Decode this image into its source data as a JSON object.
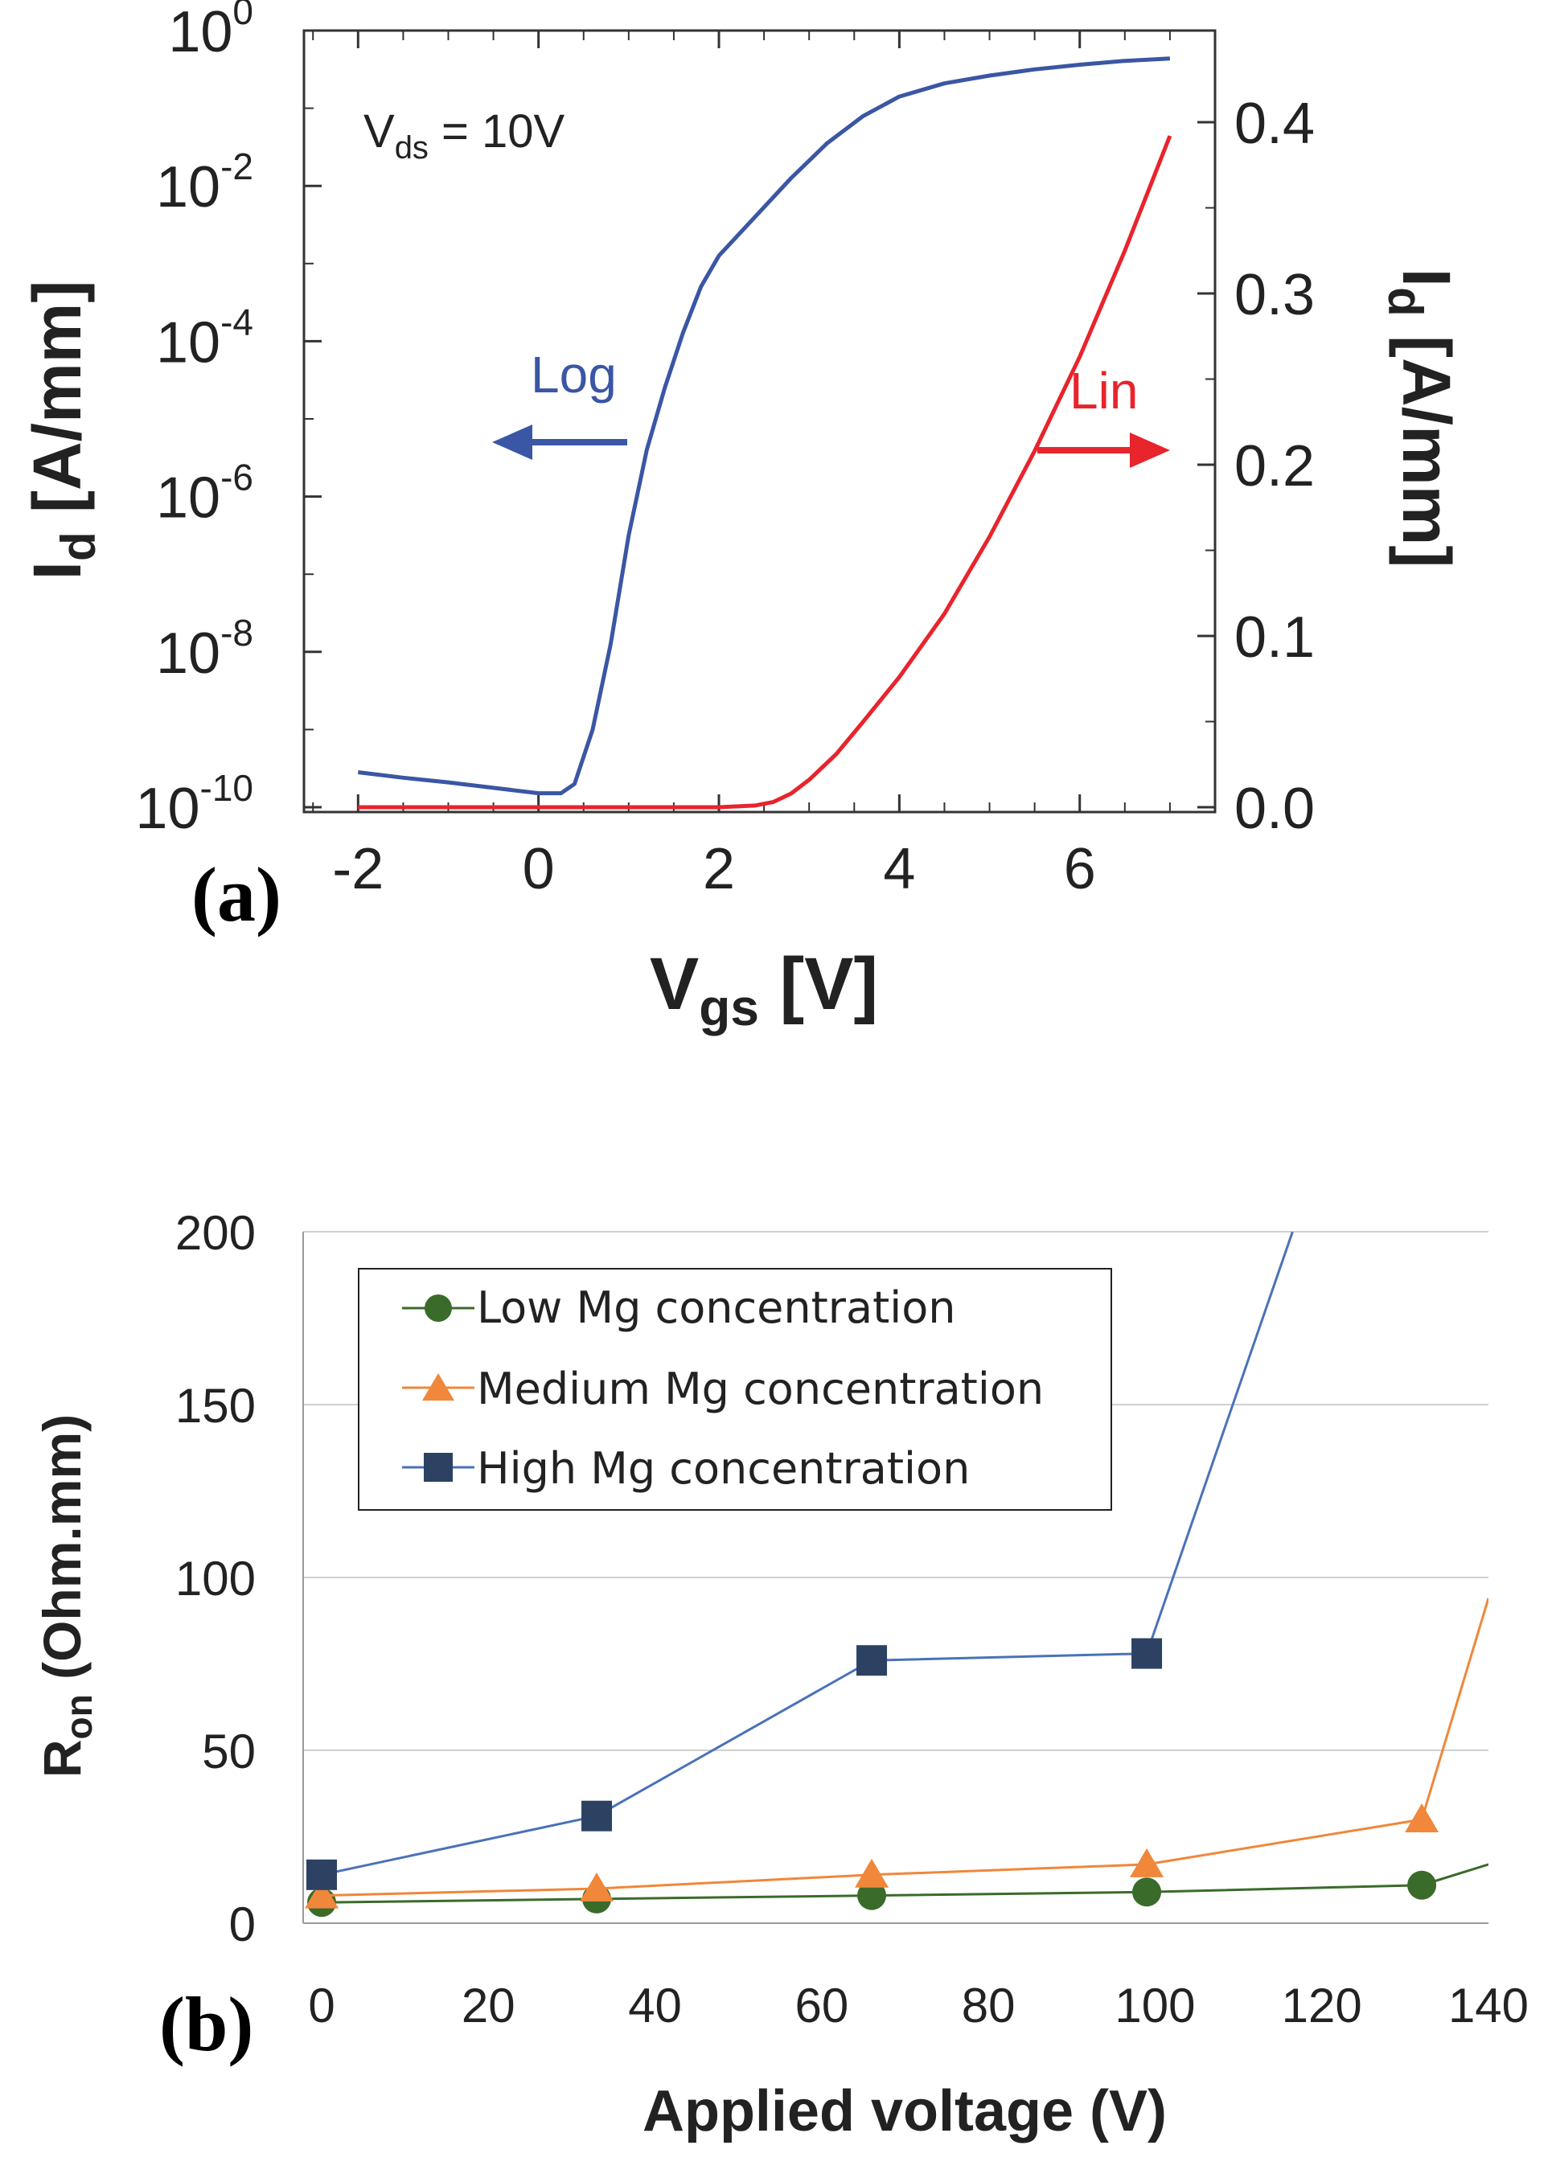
{
  "chart_data": [
    {
      "id": "a",
      "type": "line",
      "panel_label": "(a)",
      "annotation": {
        "main": "V",
        "sub": "ds",
        "rest": " = 10V"
      },
      "xlabel": {
        "main": "V",
        "sub": "gs",
        "rest": " [V]"
      },
      "ylabel_left": {
        "main": "I",
        "sub": "d",
        "rest": " [A/mm]"
      },
      "ylabel_right": {
        "main": "I",
        "sub": "d",
        "rest": " [A/mm]"
      },
      "xlim": [
        -2.6,
        7.5
      ],
      "xticks": [
        -2,
        0,
        2,
        4,
        6
      ],
      "ylim_left_log10": [
        -10,
        0
      ],
      "yticks_left_exponents": [
        0,
        -2,
        -4,
        -6,
        -8,
        -10
      ],
      "ylim_right": [
        0,
        0.44
      ],
      "yticks_right": [
        "0.4",
        "0.3",
        "0.2",
        "0.1",
        "0.0"
      ],
      "yticks_right_values": [
        0.4,
        0.3,
        0.2,
        0.1,
        0.0
      ],
      "arrows": [
        {
          "label": "Log",
          "direction": "left",
          "color": "#3a56a5"
        },
        {
          "label": "Lin",
          "direction": "right",
          "color": "#e8242c"
        }
      ],
      "series": [
        {
          "name": "Log",
          "axis": "left-log",
          "color": "#3a56a5",
          "x": [
            -2.0,
            -1.5,
            -1.0,
            -0.5,
            0.0,
            0.25,
            0.4,
            0.6,
            0.8,
            1.0,
            1.2,
            1.4,
            1.6,
            1.8,
            2.0,
            2.4,
            2.8,
            3.2,
            3.6,
            4.0,
            4.5,
            5.0,
            5.5,
            6.0,
            6.5,
            7.0
          ],
          "y": [
            -9.55,
            -9.62,
            -9.68,
            -9.75,
            -9.82,
            -9.82,
            -9.7,
            -9.0,
            -7.9,
            -6.5,
            -5.4,
            -4.6,
            -3.9,
            -3.3,
            -2.9,
            -2.4,
            -1.9,
            -1.45,
            -1.1,
            -0.85,
            -0.68,
            -0.58,
            -0.5,
            -0.44,
            -0.39,
            -0.36
          ]
        },
        {
          "name": "Lin",
          "axis": "right-linear",
          "color": "#e8242c",
          "x": [
            -2.0,
            0.0,
            2.0,
            2.4,
            2.6,
            2.8,
            3.0,
            3.3,
            3.6,
            4.0,
            4.5,
            5.0,
            5.5,
            6.0,
            6.5,
            7.0
          ],
          "y": [
            0.0,
            0.0,
            0.0,
            0.001,
            0.003,
            0.008,
            0.016,
            0.031,
            0.05,
            0.076,
            0.113,
            0.158,
            0.208,
            0.263,
            0.325,
            0.392
          ]
        }
      ]
    },
    {
      "id": "b",
      "type": "line",
      "panel_label": "(b)",
      "xlabel": "Applied voltage (V)",
      "ylabel": {
        "main": "R",
        "sub": "on",
        "rest": " (Ohm.mm)"
      },
      "xlim": [
        0,
        140
      ],
      "ylim": [
        0,
        200
      ],
      "xticks": [
        0,
        20,
        40,
        60,
        80,
        100,
        120,
        140
      ],
      "yticks": [
        0,
        50,
        100,
        150,
        200
      ],
      "grid": "horizontal",
      "legend_position": "top-left",
      "series": [
        {
          "name": "Low Mg concentration",
          "color": "#3a6b2a",
          "marker": "circle",
          "x": [
            0,
            33,
            66,
            99,
            132,
            140
          ],
          "y": [
            6,
            7,
            8,
            9,
            11,
            17
          ],
          "marker_count": 5
        },
        {
          "name": "Medium Mg concentration",
          "color": "#f0873a",
          "marker": "triangle",
          "x": [
            0,
            33,
            66,
            99,
            132,
            140
          ],
          "y": [
            8,
            10,
            14,
            17,
            30,
            94
          ],
          "marker_count": 5
        },
        {
          "name": "High Mg concentration",
          "color": "#2d4263",
          "line_color": "#4a72b8",
          "marker": "square",
          "x": [
            0,
            33,
            66,
            99,
            116.5
          ],
          "y": [
            14,
            31,
            76,
            78,
            200
          ],
          "marker_count": 4
        }
      ]
    }
  ]
}
